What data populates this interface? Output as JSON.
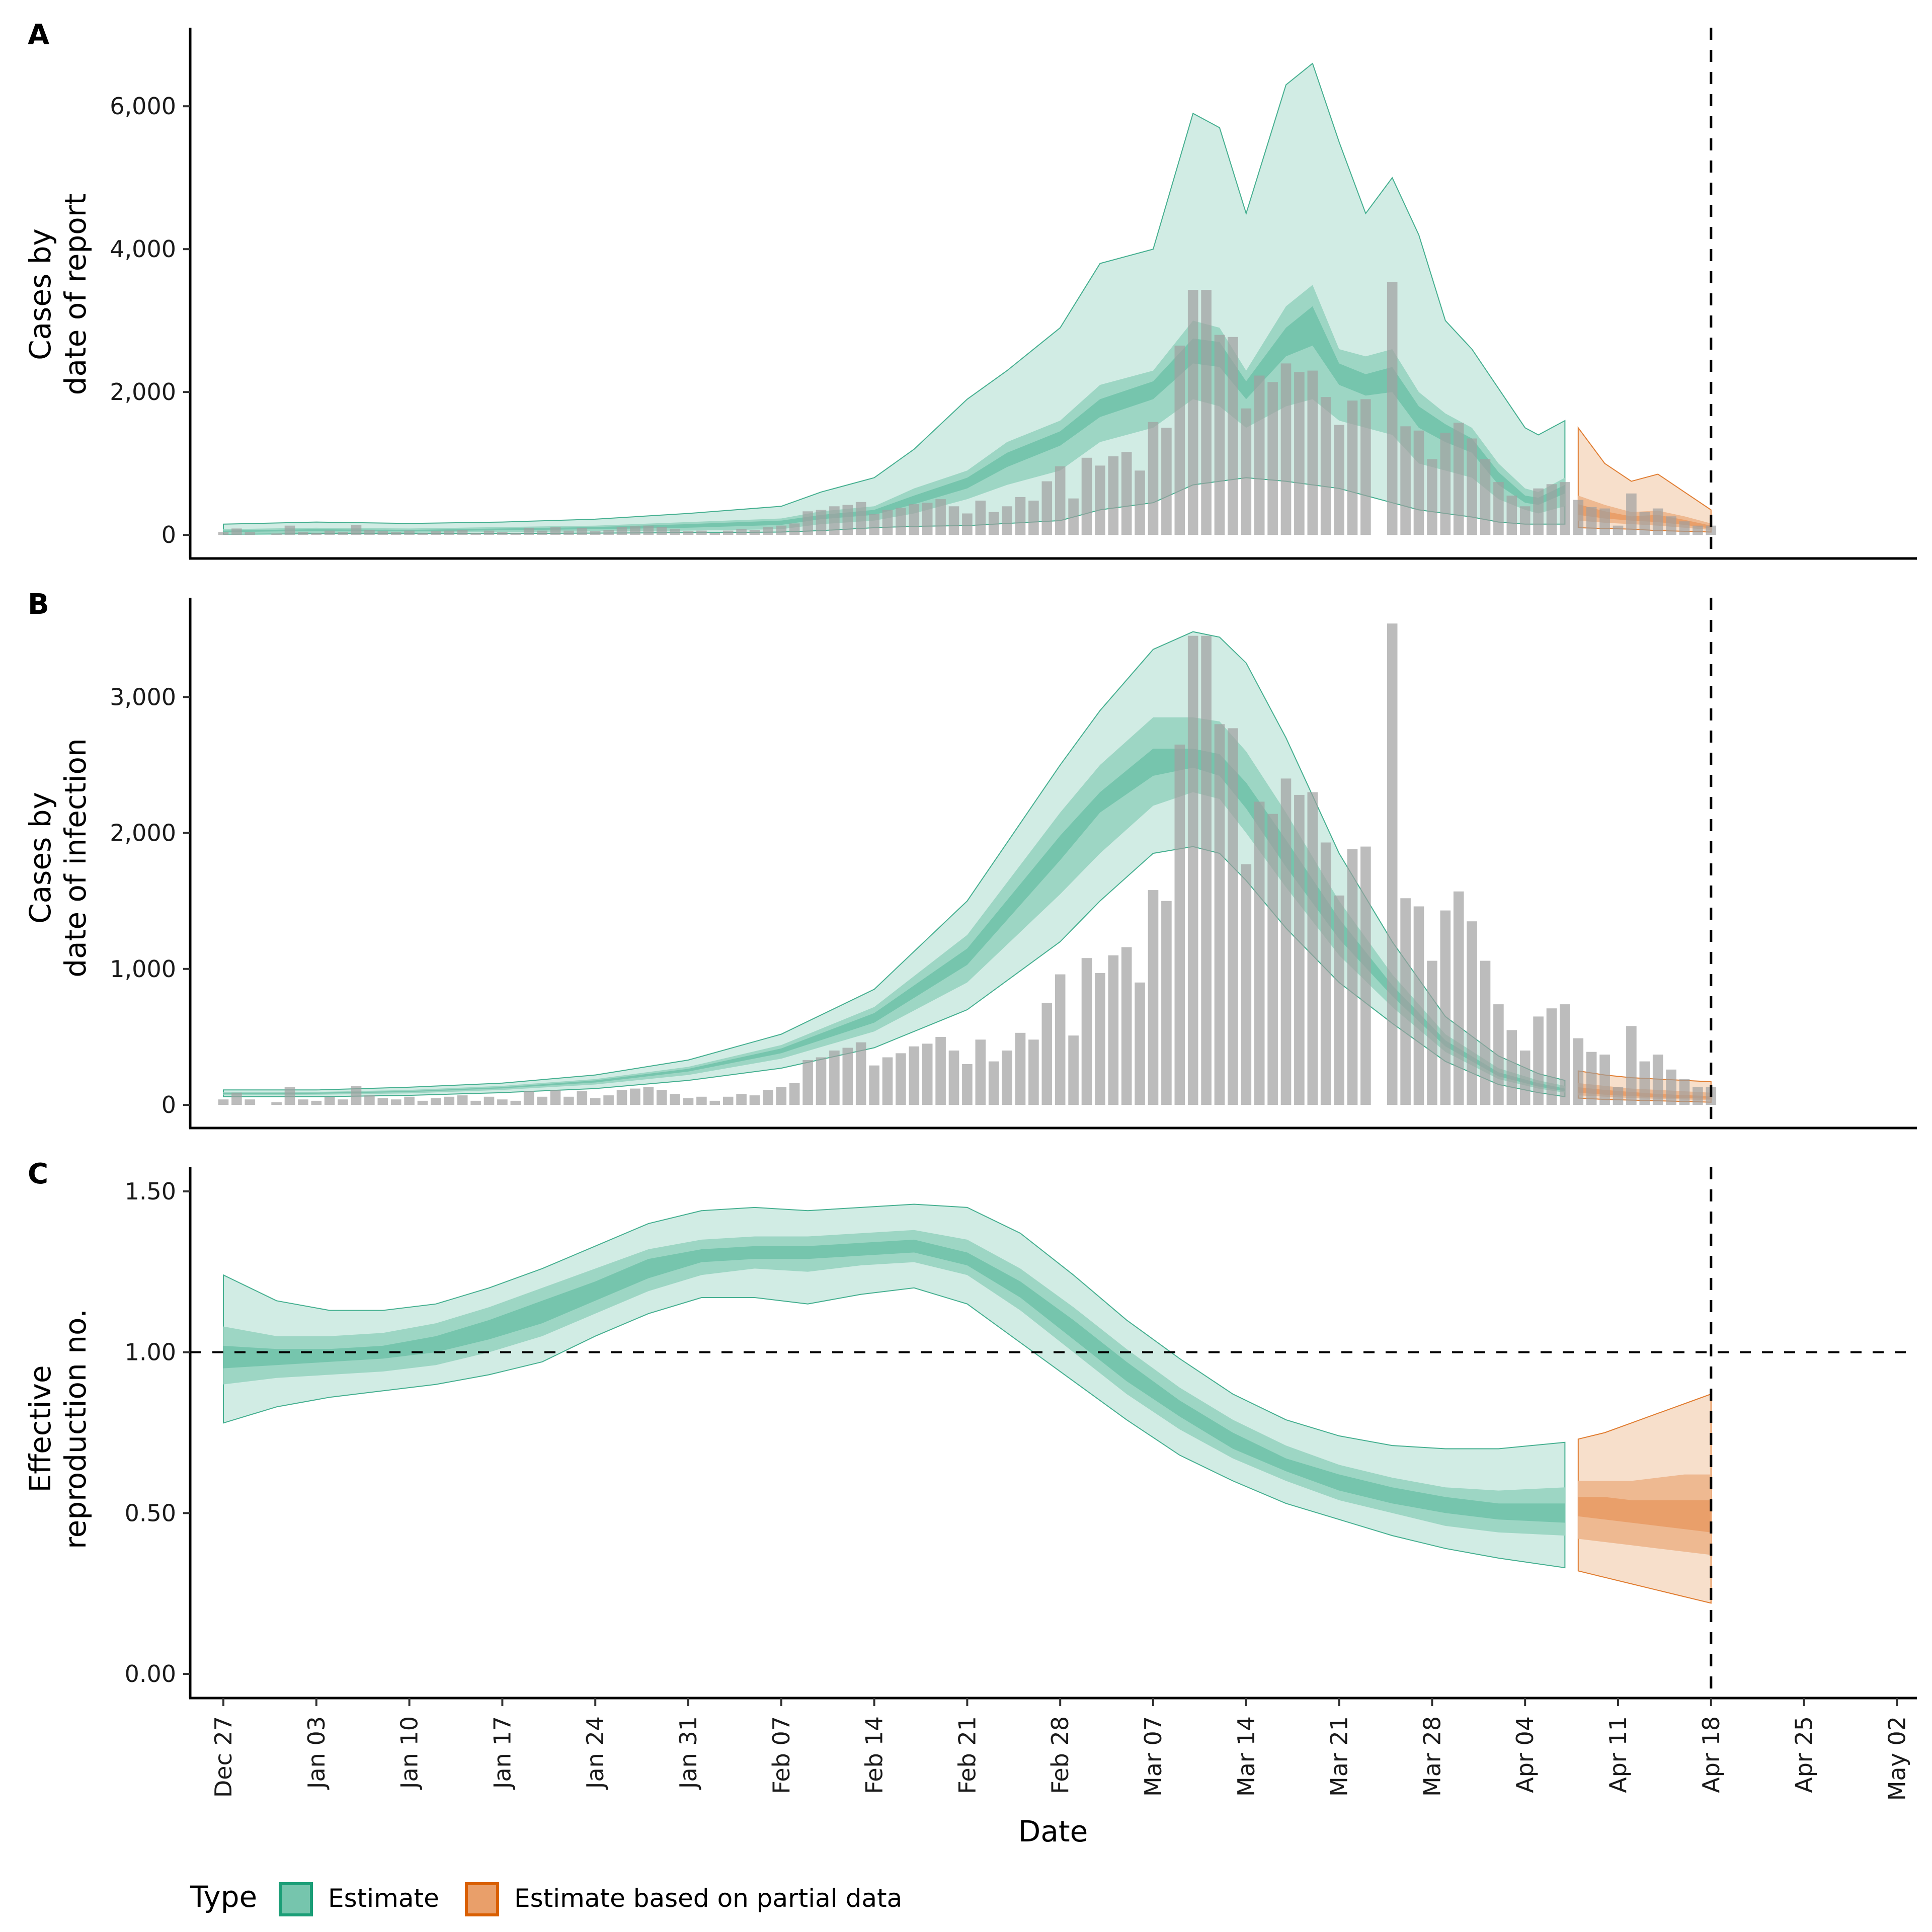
{
  "chart_data": {
    "type": "area",
    "x_label": "Date",
    "x_start": "2020-12-27",
    "x_ticks": [
      "Dec 27",
      "Jan 03",
      "Jan 10",
      "Jan 17",
      "Jan 24",
      "Jan 31",
      "Feb 07",
      "Feb 14",
      "Feb 21",
      "Feb 28",
      "Mar 07",
      "Mar 14",
      "Mar 21",
      "Mar 28",
      "Apr 04",
      "Apr 11",
      "Apr 18",
      "Apr 25",
      "May 02"
    ],
    "x_range_days": [
      -2.5,
      127.5
    ],
    "vline_day": 112,
    "estimate_end_day": 101,
    "partial_start_day": 102,
    "partial_end_day": 112,
    "legend": {
      "title": "Type",
      "position": "bottom-left",
      "entries": [
        {
          "label": "Estimate",
          "fill": "#76c5ad",
          "stroke": "#1b9e77"
        },
        {
          "label": "Estimate based on partial data",
          "fill": "#e99f6a",
          "stroke": "#d95f02"
        }
      ]
    },
    "colors": {
      "estimate_outer": "#d1ece4",
      "estimate_mid": "#9dd6c4",
      "estimate_inner": "#76c5ad",
      "estimate_line": "#1b9e77",
      "partial_outer": "#f7dfcb",
      "partial_mid": "#eeb991",
      "partial_inner": "#e99f6a",
      "partial_line": "#d95f02",
      "bar": "#a0a0a0"
    },
    "panels": [
      {
        "tag": "A",
        "ylabel": [
          "Cases by",
          "date of report"
        ],
        "yticks": [
          0,
          2000,
          4000,
          6000
        ],
        "ytick_labels": [
          "0",
          "2,000",
          "4,000",
          "6,000"
        ],
        "ylim": [
          -330,
          7100
        ],
        "hline": null,
        "bars": [
          40,
          90,
          40,
          0,
          20,
          130,
          40,
          30,
          60,
          40,
          140,
          70,
          50,
          40,
          60,
          30,
          50,
          60,
          70,
          30,
          60,
          40,
          30,
          100,
          60,
          110,
          60,
          100,
          50,
          70,
          110,
          120,
          130,
          110,
          80,
          50,
          60,
          30,
          60,
          80,
          70,
          110,
          130,
          160,
          330,
          350,
          400,
          420,
          460,
          290,
          350,
          380,
          430,
          450,
          500,
          400,
          300,
          480,
          320,
          400,
          530,
          480,
          750,
          960,
          510,
          1080,
          970,
          1100,
          1160,
          900,
          1580,
          1500,
          2650,
          3430,
          3430,
          2800,
          2770,
          1770,
          2230,
          2140,
          2400,
          2280,
          2300,
          1930,
          1540,
          1880,
          1900,
          0,
          3540,
          1520,
          1460,
          1060,
          1430,
          1570,
          1350,
          1060,
          740,
          550,
          400,
          650,
          710,
          740,
          490,
          390,
          370,
          130,
          580,
          320,
          370,
          260,
          190,
          130,
          130
        ],
        "ribbons_estimate": {
          "days": [
            0,
            7,
            14,
            21,
            28,
            35,
            42,
            45,
            49,
            52,
            56,
            59,
            63,
            66,
            70,
            73,
            75,
            77,
            80,
            82,
            84,
            86,
            88,
            90,
            92,
            94,
            96,
            98,
            99,
            101
          ],
          "outer_low": [
            10,
            15,
            15,
            20,
            25,
            30,
            40,
            60,
            100,
            120,
            130,
            160,
            200,
            350,
            450,
            700,
            750,
            800,
            750,
            700,
            650,
            550,
            450,
            350,
            300,
            250,
            180,
            150,
            150,
            150
          ],
          "outer_high": [
            150,
            180,
            160,
            180,
            220,
            300,
            400,
            600,
            800,
            1200,
            1900,
            2300,
            2900,
            3800,
            4000,
            5900,
            5700,
            4500,
            6300,
            6600,
            5500,
            4500,
            5000,
            4200,
            3000,
            2600,
            2050,
            1500,
            1400,
            1600
          ],
          "mid_low": [
            20,
            30,
            30,
            40,
            50,
            60,
            80,
            150,
            200,
            300,
            500,
            700,
            900,
            1300,
            1500,
            1900,
            1800,
            1500,
            1800,
            1900,
            1600,
            1500,
            1400,
            1000,
            900,
            800,
            500,
            350,
            300,
            400
          ],
          "mid_high": [
            80,
            100,
            90,
            110,
            130,
            180,
            230,
            330,
            400,
            650,
            900,
            1300,
            1600,
            2100,
            2300,
            3000,
            2900,
            2300,
            3200,
            3500,
            2600,
            2500,
            2600,
            2000,
            1700,
            1500,
            1000,
            650,
            600,
            800
          ],
          "inner_low": [
            40,
            55,
            50,
            65,
            80,
            100,
            140,
            220,
            280,
            430,
            650,
            950,
            1250,
            1650,
            1900,
            2400,
            2350,
            1900,
            2500,
            2650,
            2100,
            1950,
            2000,
            1500,
            1300,
            1150,
            700,
            450,
            420,
            580
          ],
          "inner_high": [
            60,
            80,
            70,
            90,
            110,
            150,
            200,
            280,
            350,
            550,
            800,
            1150,
            1450,
            1900,
            2150,
            2750,
            2700,
            2150,
            2900,
            3200,
            2400,
            2250,
            2350,
            1800,
            1550,
            1350,
            880,
            550,
            520,
            700
          ]
        },
        "ribbons_partial": {
          "days": [
            102,
            104,
            106,
            108,
            110,
            112
          ],
          "outer_low": [
            100,
            90,
            80,
            60,
            50,
            40
          ],
          "outer_high": [
            1500,
            1000,
            750,
            850,
            600,
            350
          ],
          "mid_low": [
            200,
            170,
            150,
            130,
            100,
            70
          ],
          "mid_high": [
            550,
            420,
            320,
            340,
            260,
            160
          ],
          "inner_low": [
            280,
            230,
            200,
            180,
            140,
            90
          ],
          "inner_high": [
            430,
            330,
            260,
            280,
            210,
            130
          ]
        }
      },
      {
        "tag": "B",
        "ylabel": [
          "Cases by",
          "date of infection"
        ],
        "yticks": [
          0,
          1000,
          2000,
          3000
        ],
        "ytick_labels": [
          "0",
          "1,000",
          "2,000",
          "3,000"
        ],
        "ylim": [
          -170,
          3730
        ],
        "hline": null,
        "bars": [
          40,
          90,
          40,
          0,
          20,
          130,
          40,
          30,
          60,
          40,
          140,
          70,
          50,
          40,
          60,
          30,
          50,
          60,
          70,
          30,
          60,
          40,
          30,
          100,
          60,
          110,
          60,
          100,
          50,
          70,
          110,
          120,
          130,
          110,
          80,
          50,
          60,
          30,
          60,
          80,
          70,
          110,
          130,
          160,
          330,
          350,
          400,
          420,
          460,
          290,
          350,
          380,
          430,
          450,
          500,
          400,
          300,
          480,
          320,
          400,
          530,
          480,
          750,
          960,
          510,
          1080,
          970,
          1100,
          1160,
          900,
          1580,
          1500,
          2650,
          3450,
          3450,
          2800,
          2770,
          1770,
          2230,
          2140,
          2400,
          2280,
          2300,
          1930,
          1540,
          1880,
          1900,
          0,
          3540,
          1520,
          1460,
          1060,
          1430,
          1570,
          1350,
          1060,
          740,
          550,
          400,
          650,
          710,
          740,
          490,
          390,
          370,
          130,
          580,
          320,
          370,
          260,
          190,
          130,
          130
        ],
        "ribbons_estimate": {
          "days": [
            0,
            7,
            14,
            21,
            28,
            35,
            42,
            49,
            56,
            63,
            66,
            70,
            73,
            75,
            77,
            80,
            84,
            88,
            92,
            96,
            99,
            101
          ],
          "outer_low": [
            60,
            60,
            70,
            90,
            120,
            180,
            270,
            420,
            700,
            1200,
            1500,
            1850,
            1900,
            1850,
            1650,
            1300,
            900,
            600,
            320,
            150,
            90,
            60
          ],
          "outer_high": [
            110,
            110,
            130,
            160,
            220,
            330,
            520,
            850,
            1500,
            2500,
            2900,
            3350,
            3480,
            3440,
            3250,
            2700,
            1850,
            1200,
            650,
            360,
            230,
            180
          ],
          "mid_low": [
            70,
            75,
            85,
            110,
            150,
            220,
            340,
            540,
            900,
            1550,
            1850,
            2200,
            2300,
            2250,
            2000,
            1600,
            1100,
            720,
            390,
            190,
            120,
            90
          ],
          "mid_high": [
            95,
            95,
            110,
            140,
            190,
            280,
            440,
            720,
            1250,
            2150,
            2500,
            2850,
            2850,
            2820,
            2600,
            2150,
            1500,
            960,
            520,
            270,
            180,
            140
          ],
          "inner_low": [
            78,
            82,
            95,
            122,
            165,
            245,
            380,
            605,
            1030,
            1800,
            2150,
            2420,
            2480,
            2420,
            2180,
            1750,
            1220,
            800,
            430,
            210,
            135,
            100
          ],
          "inner_high": [
            88,
            90,
            102,
            130,
            180,
            265,
            415,
            675,
            1150,
            1980,
            2300,
            2620,
            2620,
            2580,
            2370,
            1950,
            1370,
            880,
            475,
            240,
            160,
            120
          ]
        },
        "ribbons_partial": {
          "days": [
            102,
            104,
            106,
            108,
            110,
            112
          ],
          "outer_low": [
            50,
            40,
            35,
            30,
            25,
            20
          ],
          "outer_high": [
            250,
            220,
            200,
            190,
            180,
            170
          ],
          "mid_low": [
            70,
            60,
            50,
            45,
            40,
            35
          ],
          "mid_high": [
            160,
            140,
            120,
            110,
            100,
            90
          ],
          "inner_low": [
            90,
            75,
            65,
            55,
            50,
            45
          ],
          "inner_high": [
            130,
            110,
            95,
            80,
            72,
            65
          ]
        }
      },
      {
        "tag": "C",
        "ylabel": [
          "Effective",
          "reproduction no."
        ],
        "yticks": [
          0,
          0.5,
          1.0,
          1.5
        ],
        "ytick_labels": [
          "0.00",
          "0.50",
          "1.00",
          "1.50"
        ],
        "ylim": [
          -0.075,
          1.575
        ],
        "hline": 1.0,
        "bars": [],
        "ribbons_estimate": {
          "days": [
            0,
            4,
            8,
            12,
            16,
            20,
            24,
            28,
            32,
            36,
            40,
            44,
            48,
            52,
            56,
            60,
            64,
            68,
            72,
            76,
            80,
            84,
            88,
            92,
            96,
            101
          ],
          "outer_low": [
            0.78,
            0.83,
            0.86,
            0.88,
            0.9,
            0.93,
            0.97,
            1.05,
            1.12,
            1.17,
            1.17,
            1.15,
            1.18,
            1.2,
            1.15,
            1.03,
            0.91,
            0.79,
            0.68,
            0.6,
            0.53,
            0.48,
            0.43,
            0.39,
            0.36,
            0.33
          ],
          "outer_high": [
            1.24,
            1.16,
            1.13,
            1.13,
            1.15,
            1.2,
            1.26,
            1.33,
            1.4,
            1.44,
            1.45,
            1.44,
            1.45,
            1.46,
            1.45,
            1.37,
            1.24,
            1.1,
            0.98,
            0.87,
            0.79,
            0.74,
            0.71,
            0.7,
            0.7,
            0.72
          ],
          "mid_low": [
            0.9,
            0.92,
            0.93,
            0.94,
            0.96,
            1.0,
            1.05,
            1.12,
            1.19,
            1.24,
            1.26,
            1.25,
            1.27,
            1.28,
            1.24,
            1.13,
            1.0,
            0.87,
            0.76,
            0.67,
            0.6,
            0.54,
            0.5,
            0.46,
            0.44,
            0.43
          ],
          "mid_high": [
            1.08,
            1.05,
            1.05,
            1.06,
            1.09,
            1.14,
            1.2,
            1.26,
            1.32,
            1.35,
            1.36,
            1.36,
            1.37,
            1.38,
            1.35,
            1.26,
            1.14,
            1.01,
            0.89,
            0.79,
            0.71,
            0.65,
            0.61,
            0.58,
            0.57,
            0.58
          ],
          "inner_low": [
            0.95,
            0.96,
            0.97,
            0.98,
            1.0,
            1.04,
            1.09,
            1.16,
            1.23,
            1.28,
            1.29,
            1.29,
            1.3,
            1.31,
            1.27,
            1.17,
            1.04,
            0.91,
            0.8,
            0.7,
            0.63,
            0.57,
            0.53,
            0.5,
            0.48,
            0.47
          ],
          "inner_high": [
            1.02,
            1.01,
            1.01,
            1.02,
            1.05,
            1.1,
            1.16,
            1.22,
            1.29,
            1.32,
            1.33,
            1.33,
            1.34,
            1.35,
            1.31,
            1.22,
            1.1,
            0.97,
            0.85,
            0.75,
            0.67,
            0.62,
            0.58,
            0.55,
            0.53,
            0.53
          ]
        },
        "ribbons_partial": {
          "days": [
            102,
            104,
            106,
            108,
            110,
            112
          ],
          "outer_low": [
            0.32,
            0.3,
            0.28,
            0.26,
            0.24,
            0.22
          ],
          "outer_high": [
            0.73,
            0.75,
            0.78,
            0.81,
            0.84,
            0.87
          ],
          "mid_low": [
            0.42,
            0.41,
            0.4,
            0.39,
            0.38,
            0.37
          ],
          "mid_high": [
            0.6,
            0.6,
            0.6,
            0.61,
            0.62,
            0.62
          ],
          "inner_low": [
            0.49,
            0.48,
            0.47,
            0.46,
            0.45,
            0.44
          ],
          "inner_high": [
            0.55,
            0.55,
            0.54,
            0.54,
            0.54,
            0.54
          ]
        }
      }
    ]
  }
}
